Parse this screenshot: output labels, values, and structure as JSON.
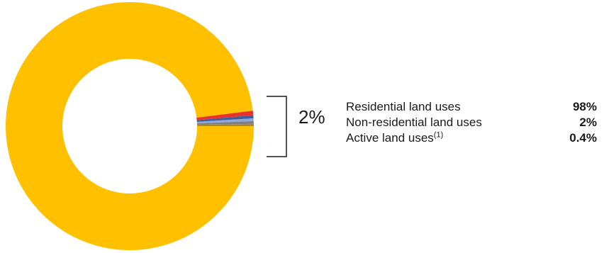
{
  "chart_data": {
    "type": "pie",
    "donut": true,
    "slices": [
      {
        "value": 98.0,
        "color": "#FFC000"
      },
      {
        "value": 0.6,
        "color": "#E8332A"
      },
      {
        "value": 0.4,
        "color": "#3A5FA0"
      },
      {
        "value": 0.35,
        "color": "#8FA9D6"
      },
      {
        "value": 0.35,
        "color": "#7F7F7F"
      },
      {
        "value": 0.3,
        "color": "#A58A3B"
      }
    ],
    "bracket_label": "2%",
    "legend": [
      {
        "label": "Residential land uses",
        "value": "98%"
      },
      {
        "label": "Non-residential land uses",
        "value": "2%"
      },
      {
        "label": "Active land uses",
        "sup": "(1)",
        "value": "0.4%"
      }
    ]
  }
}
